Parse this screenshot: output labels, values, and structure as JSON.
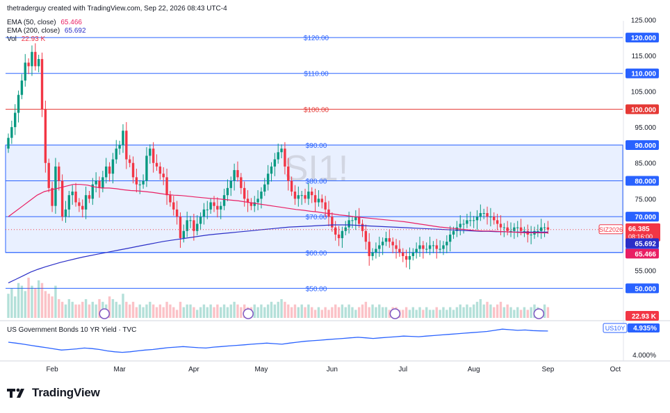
{
  "header": {
    "attribution": "thetraderguy created with TradingView.com, Sep 22, 2026 08:43 UTC-4",
    "legend": [
      {
        "label": "EMA (50, close)",
        "value": "65.466",
        "color": "#e91e63"
      },
      {
        "label": "EMA (200, close)",
        "value": "65.692",
        "color": "#2a2ec7"
      },
      {
        "label": "Vol",
        "value": "22.93 K",
        "color": "#f23645"
      }
    ]
  },
  "watermark": "SI1!",
  "brand": {
    "name": "TradingView",
    "icon": "tradingview-logo-icon"
  },
  "colors": {
    "up": "#089981",
    "down": "#f23645",
    "ema50": "#e91e63",
    "ema200": "#2a2ec7",
    "bond": "#2962ff",
    "zone": "#dbe6ff",
    "hline_blue": "#2962ff",
    "hline_red": "#e53935"
  },
  "chart_data": [
    {
      "type": "candlestick",
      "symbol": "SIZ2026",
      "last_price": "66.385",
      "countdown": "08:16:00",
      "ema50_label": "65.466",
      "ema200_label": "65.692",
      "ylim": [
        46,
        127
      ],
      "y_ticks": [
        "125.000",
        "120.000",
        "115.000",
        "110.000",
        "105.000",
        "100.000",
        "95.000",
        "90.000",
        "85.000",
        "80.000",
        "75.000",
        "70.000",
        "65.000",
        "60.000",
        "55.000",
        "50.000"
      ],
      "x_ticks": [
        {
          "label": "Feb",
          "index": 13
        },
        {
          "label": "Mar",
          "index": 33
        },
        {
          "label": "Apr",
          "index": 55
        },
        {
          "label": "May",
          "index": 75
        },
        {
          "label": "Jun",
          "index": 96
        },
        {
          "label": "Jul",
          "index": 117
        },
        {
          "label": "Aug",
          "index": 138
        },
        {
          "label": "Sep",
          "index": 160
        },
        {
          "label": "Oct",
          "index": 180
        }
      ],
      "horizontal_lines": [
        {
          "price": 120,
          "label": "$120.00",
          "axis_label": "120.000",
          "color": "#2962ff"
        },
        {
          "price": 110,
          "label": "$110.00",
          "axis_label": "110.000",
          "color": "#2962ff"
        },
        {
          "price": 100,
          "label": "$100.00",
          "axis_label": "100.000",
          "color": "#e53935"
        },
        {
          "price": 90,
          "label": "$90.00",
          "axis_label": "90.000",
          "color": "#2962ff"
        },
        {
          "price": 80,
          "label": "$80.00",
          "axis_label": "80.000",
          "color": "#2962ff"
        },
        {
          "price": 70,
          "label": "$70.00",
          "axis_label": "70.000",
          "color": "#2962ff"
        },
        {
          "price": 60,
          "label": "$60.00",
          "axis_label": "60.000",
          "color": "#2962ff"
        },
        {
          "price": 50,
          "label": "$50.00",
          "axis_label": "50.000",
          "color": "#2962ff"
        }
      ],
      "zone": {
        "from": 60,
        "to": 90
      },
      "closes": [
        92,
        95,
        99,
        104,
        108,
        113,
        112,
        116,
        112,
        114,
        100,
        85,
        78,
        73,
        84,
        80,
        70,
        72,
        76,
        77,
        74,
        73,
        72,
        76,
        75,
        79,
        80,
        78,
        81,
        84,
        82,
        86,
        89,
        90,
        94,
        86,
        85,
        81,
        79,
        79,
        80,
        87,
        89,
        85,
        84,
        82,
        81,
        76,
        74,
        72,
        70,
        64,
        66,
        69,
        69,
        66,
        68,
        70,
        72,
        72,
        74,
        73,
        72,
        73,
        76,
        78,
        80,
        83,
        81,
        78,
        75,
        74,
        73,
        74,
        75,
        77,
        79,
        82,
        84,
        86,
        88,
        89,
        84,
        80,
        77,
        75,
        76,
        76,
        75,
        77,
        76,
        74,
        75,
        74,
        72,
        70,
        67,
        65,
        64,
        66,
        67,
        69,
        69,
        70,
        68,
        66,
        63,
        59,
        60,
        61,
        62,
        63,
        64,
        63,
        62,
        61,
        60,
        59,
        58,
        59,
        60,
        61,
        62,
        61,
        61,
        62,
        62,
        61,
        61,
        62,
        63,
        65,
        66,
        67,
        68,
        68,
        69,
        69,
        69,
        70,
        71,
        71,
        70,
        70,
        69,
        68,
        67,
        67,
        66,
        66,
        67,
        67,
        66,
        66,
        65,
        65,
        66,
        66,
        67,
        67,
        66.385
      ],
      "ema50": [
        70,
        71.5,
        73,
        74.5,
        76,
        77,
        77.5,
        78,
        78.5,
        79,
        79,
        78.8,
        78.3,
        78,
        78,
        77.8,
        77.5,
        77.3,
        77.2,
        77,
        76.8,
        76.5,
        76.2,
        76,
        75.9,
        75.7,
        75.5,
        75.3,
        75.1,
        75,
        74.8,
        74.6,
        74.4,
        74.1,
        73.8,
        73.5,
        73.2,
        72.9,
        72.6,
        72.3,
        72,
        71.8,
        71.5,
        71.3,
        71,
        70.8,
        70.5,
        70.3,
        70,
        69.8,
        69.6,
        69.4,
        69.2,
        69,
        68.8,
        68.6,
        68.3,
        68,
        67.7,
        67.4,
        67.1,
        66.9,
        66.7,
        66.5,
        66.3,
        66.1,
        66,
        66,
        65.9,
        65.8,
        65.7,
        65.6,
        65.5,
        65.5,
        65.5,
        65.466
      ],
      "ema200": [
        51.5,
        52.5,
        53.5,
        54.5,
        55.3,
        56,
        56.6,
        57.2,
        57.7,
        58.2,
        58.7,
        59.1,
        59.5,
        59.9,
        60.3,
        60.7,
        61.1,
        61.5,
        61.9,
        62.3,
        62.7,
        63.1,
        63.4,
        63.7,
        64,
        64.3,
        64.6,
        64.9,
        65.1,
        65.3,
        65.5,
        65.7,
        65.9,
        66.1,
        66.3,
        66.5,
        66.7,
        66.9,
        67.1,
        67.2,
        67.3,
        67.4,
        67.5,
        67.6,
        67.7,
        67.7,
        67.7,
        67.6,
        67.5,
        67.4,
        67.3,
        67.2,
        67.1,
        67,
        66.9,
        66.8,
        66.7,
        66.6,
        66.5,
        66.4,
        66.3,
        66.2,
        66.1,
        66,
        65.9,
        65.9,
        65.8,
        65.8,
        65.7,
        65.7,
        65.7,
        65.7,
        65.7,
        65.692
      ],
      "volume": [
        9,
        11,
        8,
        13,
        12,
        10,
        15,
        12,
        11,
        14,
        13,
        10,
        9,
        8,
        12,
        7,
        6,
        5,
        7,
        6,
        5,
        5,
        6,
        7,
        5,
        6,
        5,
        7,
        6,
        5,
        8,
        7,
        6,
        5,
        9,
        6,
        5,
        6,
        4,
        5,
        4,
        5,
        6,
        5,
        4,
        5,
        4,
        6,
        5,
        4,
        3,
        6,
        4,
        5,
        5,
        4,
        3,
        4,
        5,
        4,
        5,
        4,
        5,
        4,
        5,
        4,
        5,
        6,
        5,
        4,
        5,
        4,
        4,
        5,
        4,
        5,
        4,
        5,
        6,
        5,
        6,
        7,
        6,
        5,
        4,
        5,
        4,
        5,
        4,
        5,
        4,
        3,
        4,
        3,
        4,
        3,
        4,
        5,
        4,
        5,
        4,
        5,
        4,
        3,
        4,
        5,
        6,
        4,
        5,
        4,
        5,
        4,
        4,
        3,
        4,
        4,
        3,
        3,
        4,
        3,
        4,
        3,
        4,
        3,
        4,
        3,
        3,
        4,
        3,
        4,
        3,
        4,
        3,
        4,
        5,
        4,
        5,
        4,
        5,
        6,
        7,
        5,
        6,
        5,
        4,
        5,
        6,
        4,
        5,
        4,
        3,
        4,
        3,
        4,
        3,
        4,
        5,
        4,
        3,
        5,
        4
      ],
      "volume_label": "22.93 K"
    },
    {
      "type": "line",
      "title": "US Government Bonds 10 YR Yield · TVC",
      "symbol": "US10Y",
      "last_value": "4.935%",
      "y_ticks": [
        "4.000%"
      ],
      "values": [
        4.55,
        4.52,
        4.48,
        4.44,
        4.4,
        4.36,
        4.32,
        4.28,
        4.3,
        4.32,
        4.35,
        4.33,
        4.3,
        4.25,
        4.22,
        4.2,
        4.22,
        4.25,
        4.28,
        4.3,
        4.33,
        4.36,
        4.38,
        4.4,
        4.38,
        4.36,
        4.35,
        4.38,
        4.4,
        4.42,
        4.44,
        4.46,
        4.48,
        4.5,
        4.52,
        4.5,
        4.48,
        4.52,
        4.55,
        4.58,
        4.6,
        4.62,
        4.64,
        4.66,
        4.68,
        4.7,
        4.72,
        4.7,
        4.68,
        4.7,
        4.72,
        4.74,
        4.76,
        4.75,
        4.74,
        4.76,
        4.78,
        4.8,
        4.82,
        4.84,
        4.86,
        4.88,
        4.9,
        4.92,
        4.96,
        5.0,
        4.98,
        4.96,
        4.97,
        4.95,
        4.94,
        4.935
      ]
    }
  ]
}
